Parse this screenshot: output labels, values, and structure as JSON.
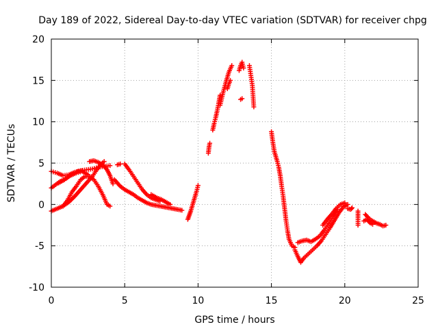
{
  "chart_data": {
    "type": "scatter",
    "title": "Day 189 of 2022, Sidereal Day-to-day VTEC variation (SDTVAR) for receiver chpg",
    "xlabel": "GPS time / hours",
    "ylabel": "SDTVAR / TECUs",
    "xlim": [
      0,
      25
    ],
    "ylim": [
      -10,
      20
    ],
    "xticks": [
      0,
      5,
      10,
      15,
      20,
      25
    ],
    "yticks": [
      -10,
      -5,
      0,
      5,
      10,
      15,
      20
    ],
    "grid": true,
    "marker": "+",
    "color": "#ff0000",
    "segments": [
      {
        "x": [
          0.0,
          0.4,
          0.8,
          1.2,
          1.6,
          2.0,
          2.4,
          2.8,
          3.2,
          3.6,
          4.0
        ],
        "y": [
          4.0,
          3.8,
          3.5,
          3.6,
          3.9,
          4.1,
          4.2,
          4.3,
          4.5,
          4.6,
          4.7
        ]
      },
      {
        "x": [
          0.0,
          0.3,
          0.6,
          0.9,
          1.2,
          1.5,
          1.8,
          2.1
        ],
        "y": [
          2.0,
          2.4,
          2.8,
          3.0,
          3.4,
          3.8,
          4.0,
          4.1
        ]
      },
      {
        "x": [
          0.0,
          0.4,
          0.8,
          1.2,
          1.6,
          2.0,
          2.4,
          2.8,
          3.1,
          3.4,
          3.6
        ],
        "y": [
          -0.8,
          -0.5,
          -0.2,
          0.3,
          1.0,
          1.8,
          2.6,
          3.4,
          4.2,
          4.9,
          5.2
        ]
      },
      {
        "x": [
          0.8,
          1.1,
          1.4,
          1.7,
          2.0,
          2.3,
          2.6,
          2.9,
          3.2,
          3.5,
          3.8,
          4.0
        ],
        "y": [
          -0.2,
          0.5,
          1.5,
          2.2,
          3.0,
          3.4,
          3.4,
          3.0,
          2.2,
          1.2,
          0.0,
          -0.2
        ]
      },
      {
        "x": [
          2.6,
          2.9,
          3.2,
          3.5,
          3.8,
          4.0,
          4.2
        ],
        "y": [
          5.2,
          5.3,
          5.1,
          4.8,
          4.2,
          3.5,
          2.5
        ]
      },
      {
        "x": [
          0.5,
          0.9,
          1.3,
          1.7,
          2.1,
          2.5
        ],
        "y": [
          2.6,
          3.0,
          3.5,
          3.8,
          4.0,
          3.6
        ]
      },
      {
        "x": [
          4.3,
          4.5,
          4.7,
          5.0,
          5.3,
          5.6,
          5.9,
          6.2,
          6.5,
          6.8,
          7.1,
          7.4,
          7.7,
          8.0,
          8.3,
          8.6,
          8.9
        ],
        "y": [
          3.0,
          2.6,
          2.2,
          1.8,
          1.5,
          1.2,
          0.8,
          0.5,
          0.2,
          0.0,
          -0.1,
          -0.2,
          -0.3,
          -0.4,
          -0.5,
          -0.6,
          -0.7
        ]
      },
      {
        "x": [
          5.0,
          5.3,
          5.6,
          5.9,
          6.2,
          6.5,
          6.8,
          7.1,
          7.4
        ],
        "y": [
          4.9,
          4.2,
          3.4,
          2.6,
          1.8,
          1.2,
          0.8,
          0.6,
          0.4
        ]
      },
      {
        "x": [
          4.5,
          4.7
        ],
        "y": [
          4.8,
          4.9
        ]
      },
      {
        "x": [
          6.8,
          7.0,
          7.2,
          7.5,
          7.8,
          8.1
        ],
        "y": [
          1.2,
          1.0,
          0.8,
          0.6,
          0.3,
          0.0
        ]
      },
      {
        "x": [
          9.3,
          9.4,
          9.5,
          9.6,
          9.7,
          9.8,
          9.9,
          10.0
        ],
        "y": [
          -1.8,
          -1.3,
          -0.8,
          -0.2,
          0.4,
          1.0,
          1.6,
          2.3
        ]
      },
      {
        "x": [
          10.7,
          10.75,
          10.8
        ],
        "y": [
          6.2,
          7.0,
          7.4
        ]
      },
      {
        "x": [
          11.0,
          11.1,
          11.2,
          11.3,
          11.4,
          11.5
        ],
        "y": [
          9.0,
          9.8,
          10.5,
          11.3,
          12.2,
          13.2
        ]
      },
      {
        "x": [
          11.5,
          11.7,
          11.9,
          12.1,
          12.3
        ],
        "y": [
          12.0,
          13.5,
          14.8,
          16.0,
          16.8
        ]
      },
      {
        "x": [
          12.0,
          12.1,
          12.2
        ],
        "y": [
          14.0,
          14.6,
          15.0
        ]
      },
      {
        "x": [
          12.8,
          12.9,
          13.0,
          13.1
        ],
        "y": [
          16.2,
          16.8,
          17.2,
          16.5
        ]
      },
      {
        "x": [
          12.9,
          13.0
        ],
        "y": [
          12.7,
          12.8
        ]
      },
      {
        "x": [
          13.5,
          13.6,
          13.7,
          13.8
        ],
        "y": [
          16.8,
          15.6,
          14.4,
          11.8
        ]
      },
      {
        "x": [
          15.0,
          15.1,
          15.2,
          15.3,
          15.4,
          15.5,
          15.6,
          15.7,
          15.8,
          15.9,
          16.0,
          16.1,
          16.2,
          16.4,
          16.6
        ],
        "y": [
          8.8,
          7.5,
          6.4,
          5.8,
          5.2,
          4.5,
          3.5,
          2.2,
          1.0,
          -0.5,
          -2.0,
          -3.2,
          -4.2,
          -5.0,
          -5.2
        ]
      },
      {
        "x": [
          16.6,
          16.8,
          17.0,
          17.2,
          17.5,
          17.8,
          18.1,
          18.4,
          18.7,
          19.0,
          19.3,
          19.6,
          19.9,
          20.2
        ],
        "y": [
          -5.5,
          -6.3,
          -7.0,
          -6.5,
          -6.0,
          -5.5,
          -5.0,
          -4.4,
          -3.6,
          -2.8,
          -1.9,
          -1.0,
          -0.3,
          0.0
        ]
      },
      {
        "x": [
          16.8,
          17.1,
          17.4,
          17.7,
          18.0,
          18.3,
          18.6,
          18.9,
          19.2,
          19.5
        ],
        "y": [
          -4.6,
          -4.4,
          -4.3,
          -4.5,
          -4.2,
          -3.8,
          -3.1,
          -2.3,
          -1.5,
          -0.6
        ]
      },
      {
        "x": [
          18.5,
          18.8,
          19.1,
          19.4,
          19.7,
          20.0
        ],
        "y": [
          -2.5,
          -1.8,
          -1.2,
          -0.5,
          0.0,
          0.2
        ]
      },
      {
        "x": [
          20.2,
          20.4,
          20.5
        ],
        "y": [
          -0.5,
          -0.6,
          -0.4
        ]
      },
      {
        "x": [
          20.9,
          20.9,
          20.9
        ],
        "y": [
          -2.5,
          -1.6,
          -0.8
        ]
      },
      {
        "x": [
          21.4,
          21.6,
          21.8,
          22.0,
          22.2,
          22.4,
          22.6,
          22.8
        ],
        "y": [
          -1.2,
          -1.6,
          -1.9,
          -2.1,
          -2.3,
          -2.4,
          -2.6,
          -2.5
        ]
      },
      {
        "x": [
          21.3,
          21.5,
          21.7,
          21.9
        ],
        "y": [
          -2.0,
          -1.8,
          -2.2,
          -2.4
        ]
      }
    ]
  }
}
